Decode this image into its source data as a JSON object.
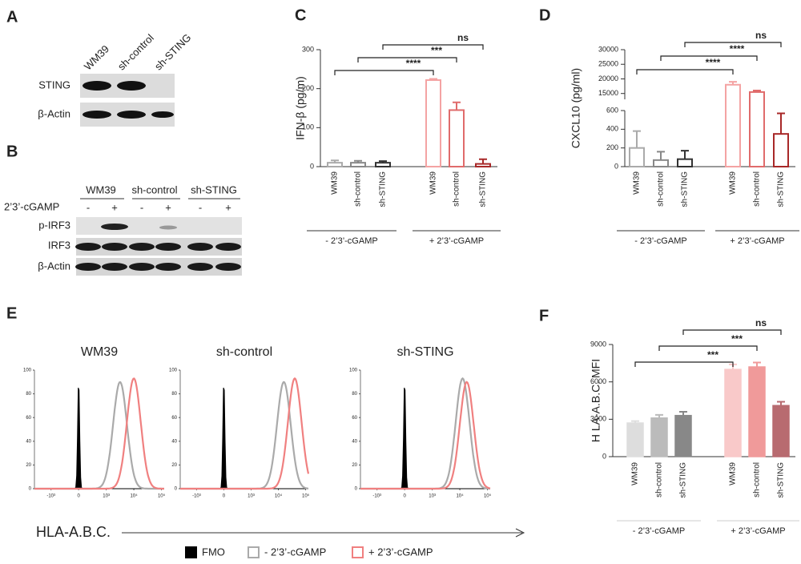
{
  "panel_labels": [
    "A",
    "B",
    "C",
    "D",
    "E",
    "F"
  ],
  "blot_a": {
    "lanes": [
      "WM39",
      "sh-control",
      "sh-STING"
    ],
    "rows": [
      "STING",
      "β-Actin"
    ]
  },
  "blot_b": {
    "groups": [
      "WM39",
      "sh-control",
      "sh-STING"
    ],
    "treatment": "2’3’-cGAMP",
    "signs": [
      "-",
      "+",
      "-",
      "+",
      "-",
      "+"
    ],
    "rows": [
      "p-IRF3",
      "IRF3",
      "β-Actin"
    ]
  },
  "chart_data": [
    {
      "type": "bar",
      "style": "outline",
      "ylabel": "IFN-β (pg/m)",
      "categories": [
        "WM39",
        "sh-control",
        "sh-STING",
        "WM39",
        "sh-control",
        "sh-STING"
      ],
      "groups": [
        "- 2’3’-cGAMP",
        "+ 2’3’-cGAMP"
      ],
      "values": [
        10,
        10,
        10,
        222,
        145,
        7
      ],
      "errors": [
        6,
        5,
        4,
        3,
        20,
        12
      ],
      "colors": [
        "#aaaaaa",
        "#888888",
        "#333333",
        "#f4a3a3",
        "#e06b6b",
        "#a82828"
      ],
      "ylim": [
        0,
        300
      ],
      "yticks": [
        0,
        100,
        200,
        300
      ],
      "brackets": [
        "****",
        "***",
        "ns"
      ]
    },
    {
      "type": "bar",
      "style": "outline",
      "ylabel": "CXCL10 (pg/ml)",
      "categories": [
        "WM39",
        "sh-control",
        "sh-STING",
        "WM39",
        "sh-control",
        "sh-STING"
      ],
      "groups": [
        "- 2’3’-cGAMP",
        "+ 2’3’-cGAMP"
      ],
      "values": [
        200,
        70,
        80,
        18000,
        15500,
        350
      ],
      "errors": [
        180,
        90,
        90,
        1000,
        500,
        220
      ],
      "colors": [
        "#aaaaaa",
        "#888888",
        "#333333",
        "#f4a3a3",
        "#e06b6b",
        "#a82828"
      ],
      "ylim_segments": [
        [
          0,
          600
        ],
        [
          13000,
          30000
        ]
      ],
      "yticks": [
        0,
        200,
        400,
        600,
        15000,
        20000,
        25000,
        30000
      ],
      "brackets": [
        "****",
        "****",
        "ns"
      ]
    },
    {
      "type": "density",
      "panels": [
        "WM39",
        "sh-control",
        "sh-STING"
      ],
      "xlabel": "HLA-A.B.C.",
      "xlim": [
        -1.6,
        3.1
      ],
      "xticks": [
        {
          "value": -1,
          "label": "-10³"
        },
        0,
        {
          "value": 1,
          "label": "10³"
        },
        {
          "value": 2,
          "label": "10⁴"
        },
        {
          "value": 3,
          "label": "10⁵"
        }
      ],
      "ylim": [
        0,
        100
      ],
      "yticks": [
        0,
        20,
        40,
        60,
        80,
        100
      ],
      "series": [
        {
          "name": "FMO",
          "color": "#000000",
          "values": [
            0,
            0,
            0
          ],
          "heights": [
            92,
            92,
            92
          ]
        },
        {
          "name": "- 2’3’-cGAMP",
          "color": "#aaaaaa",
          "values": [
            1.5,
            2.2,
            2.1
          ],
          "heights": [
            90,
            90,
            93
          ]
        },
        {
          "name": "+ 2’3’-cGAMP",
          "color": "#f08080",
          "values": [
            2.0,
            2.6,
            2.25
          ],
          "heights": [
            93,
            93,
            90
          ]
        }
      ]
    },
    {
      "type": "bar",
      "style": "filled",
      "ylabel": "H LA-A.B.C. MFI",
      "categories": [
        "WM39",
        "sh-control",
        "sh-STING",
        "WM39",
        "sh-control",
        "sh-STING"
      ],
      "groups": [
        "- 2’3’-cGAMP",
        "+ 2’3’-cGAMP"
      ],
      "values": [
        2700,
        3100,
        3300,
        7000,
        7200,
        4100
      ],
      "errors": [
        150,
        250,
        300,
        400,
        350,
        300
      ],
      "colors": [
        "#dddddd",
        "#bbbbbb",
        "#888888",
        "#f9c9c9",
        "#f09a9a",
        "#b86b70"
      ],
      "ylim": [
        0,
        9000
      ],
      "yticks": [
        0,
        3000,
        6000,
        9000
      ],
      "brackets": [
        "***",
        "***",
        "ns"
      ]
    }
  ]
}
